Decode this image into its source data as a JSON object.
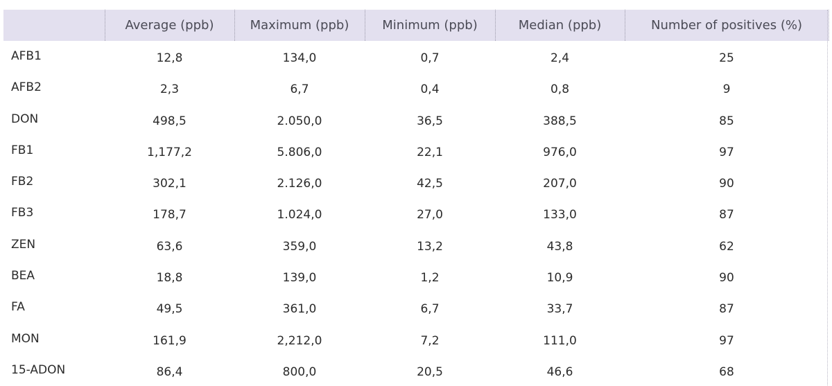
{
  "table": {
    "headers": [
      "",
      "Average (ppb)",
      "Maximum (ppb)",
      "Minimum (ppb)",
      "Median (ppb)",
      "Number of positives (%)"
    ],
    "rows": [
      {
        "label": "AFB1",
        "average": "12,8",
        "maximum": "134,0",
        "minimum": "0,7",
        "median": "2,4",
        "positives": "25"
      },
      {
        "label": "AFB2",
        "average": "2,3",
        "maximum": "6,7",
        "minimum": "0,4",
        "median": "0,8",
        "positives": "9"
      },
      {
        "label": "DON",
        "average": "498,5",
        "maximum": "2.050,0",
        "minimum": "36,5",
        "median": "388,5",
        "positives": "85"
      },
      {
        "label": "FB1",
        "average": "1,177,2",
        "maximum": "5.806,0",
        "minimum": "22,1",
        "median": "976,0",
        "positives": "97"
      },
      {
        "label": "FB2",
        "average": "302,1",
        "maximum": "2.126,0",
        "minimum": "42,5",
        "median": "207,0",
        "positives": "90"
      },
      {
        "label": "FB3",
        "average": "178,7",
        "maximum": "1.024,0",
        "minimum": "27,0",
        "median": "133,0",
        "positives": "87"
      },
      {
        "label": "ZEN",
        "average": "63,6",
        "maximum": "359,0",
        "minimum": "13,2",
        "median": "43,8",
        "positives": "62"
      },
      {
        "label": "BEA",
        "average": "18,8",
        "maximum": "139,0",
        "minimum": "1,2",
        "median": "10,9",
        "positives": "90"
      },
      {
        "label": "FA",
        "average": "49,5",
        "maximum": "361,0",
        "minimum": "6,7",
        "median": "33,7",
        "positives": "87"
      },
      {
        "label": "MON",
        "average": "161,9",
        "maximum": "2,212,0",
        "minimum": "7,2",
        "median": "111,0",
        "positives": "97"
      },
      {
        "label": "15-ADON",
        "average": "86,4",
        "maximum": "800,0",
        "minimum": "20,5",
        "median": "46,6",
        "positives": "68"
      }
    ]
  },
  "colors": {
    "header_bg": "#e3e0ef",
    "header_text": "#4a4a55",
    "body_text": "#2b2b2b"
  }
}
